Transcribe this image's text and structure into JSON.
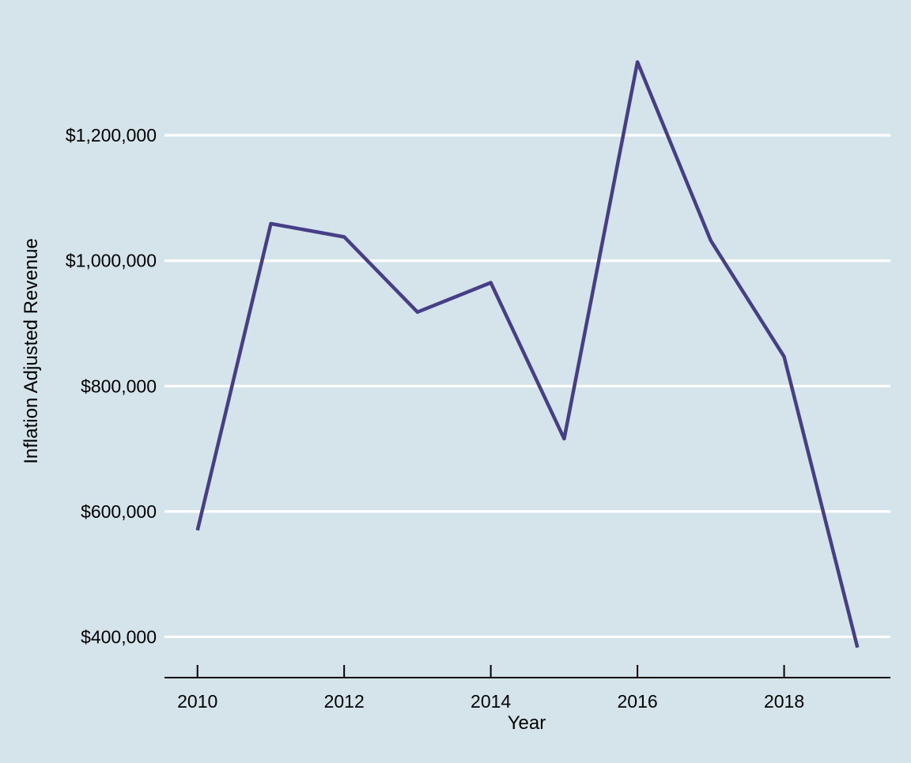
{
  "chart_data": {
    "type": "line",
    "title": "",
    "xlabel": "Year",
    "ylabel": "Inflation Adjusted Revenue",
    "x": [
      2010,
      2011,
      2012,
      2013,
      2014,
      2015,
      2016,
      2017,
      2018,
      2019
    ],
    "series": [
      {
        "values": [
          570000,
          1059000,
          1038000,
          918000,
          965000,
          716000,
          1317000,
          1032000,
          847000,
          383000
        ]
      }
    ],
    "xticks": [
      2010,
      2012,
      2014,
      2016,
      2018
    ],
    "xtick_labels": [
      "2010",
      "2012",
      "2014",
      "2016",
      "2018"
    ],
    "yticks": [
      400000,
      600000,
      800000,
      1000000,
      1200000
    ],
    "ytick_labels": [
      "$400,000",
      "$600,000",
      "$800,000",
      "$1,000,000",
      "$1,200,000"
    ],
    "xlim": [
      2009.55,
      2019.45
    ],
    "ylim": [
      335000,
      1378000
    ],
    "grid": "horizontal",
    "legend": "none",
    "colors": {
      "background": "#d5e4eb",
      "line": "#463f87",
      "grid": "#ffffff",
      "axis": "#000000"
    }
  }
}
